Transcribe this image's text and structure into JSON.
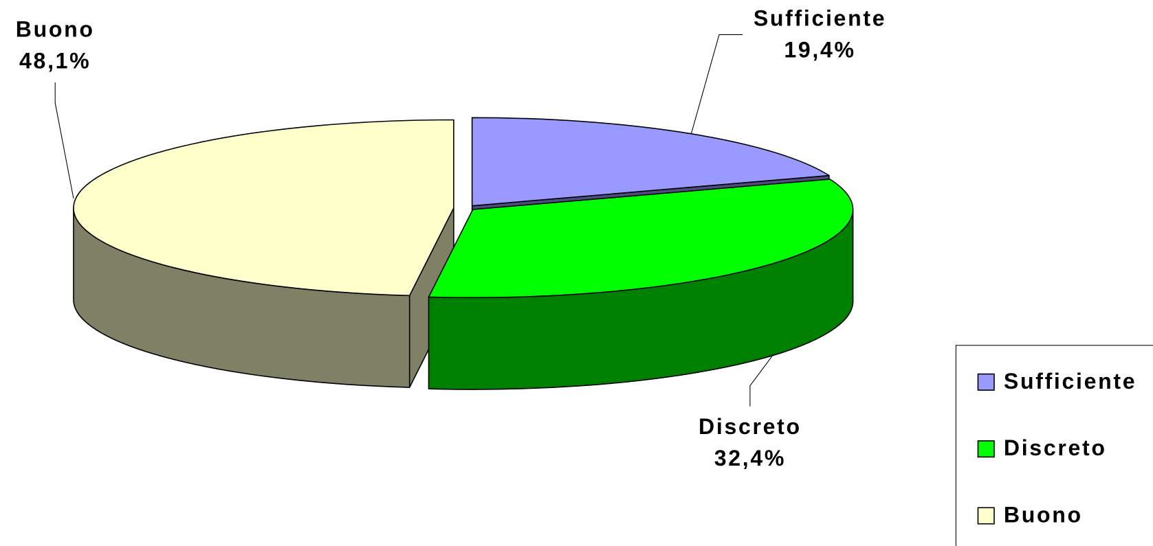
{
  "chart_data": {
    "type": "pie3d",
    "categories": [
      "Sufficiente",
      "Discreto",
      "Buono"
    ],
    "values": [
      19.4,
      32.4,
      48.1
    ],
    "value_labels": [
      "19,4%",
      "32,4%",
      "48,1%"
    ],
    "colors": [
      "#9999ff",
      "#00ff00",
      "#ffffcc"
    ],
    "legend": "right"
  }
}
